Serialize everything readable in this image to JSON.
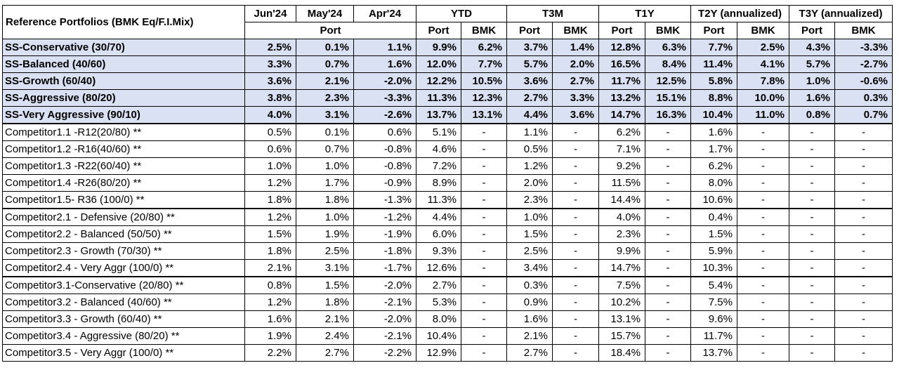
{
  "header": {
    "corner": "Reference Portfolios (BMK Eq/F.I.Mix)",
    "periods": [
      "Jun'24",
      "May'24",
      "Apr'24",
      "YTD",
      "T3M",
      "T1Y",
      "T2Y (annualized)",
      "T3Y (annualized)"
    ],
    "port_label": "Port",
    "bmk_label": "BMK"
  },
  "groups": [
    {
      "type": "ss",
      "rows": [
        {
          "name": "SS-Conservative (30/70)",
          "values": [
            "2.5%",
            "0.1%",
            "1.1%",
            "9.9%",
            "6.2%",
            "3.7%",
            "1.4%",
            "12.8%",
            "6.3%",
            "7.7%",
            "2.5%",
            "4.3%",
            "-3.3%"
          ]
        },
        {
          "name": "SS-Balanced (40/60)",
          "values": [
            "3.3%",
            "0.7%",
            "1.6%",
            "12.0%",
            "7.7%",
            "5.7%",
            "2.0%",
            "16.5%",
            "8.4%",
            "11.4%",
            "4.1%",
            "5.7%",
            "-2.7%"
          ]
        },
        {
          "name": "SS-Growth (60/40)",
          "values": [
            "3.6%",
            "2.1%",
            "-2.0%",
            "12.2%",
            "10.5%",
            "3.6%",
            "2.7%",
            "11.7%",
            "12.5%",
            "5.8%",
            "7.8%",
            "1.0%",
            "-0.6%"
          ]
        },
        {
          "name": "SS-Aggressive (80/20)",
          "values": [
            "3.8%",
            "2.3%",
            "-3.3%",
            "11.3%",
            "12.3%",
            "2.7%",
            "3.3%",
            "13.2%",
            "15.1%",
            "8.8%",
            "10.0%",
            "1.6%",
            "0.3%"
          ]
        },
        {
          "name": "SS-Very Aggressive (90/10)",
          "values": [
            "4.0%",
            "3.1%",
            "-2.6%",
            "13.7%",
            "13.1%",
            "4.4%",
            "3.6%",
            "14.7%",
            "16.3%",
            "10.4%",
            "11.0%",
            "0.8%",
            "0.7%"
          ]
        }
      ]
    },
    {
      "type": "comp",
      "rows": [
        {
          "name": "Competitor1.1 -R12(20/80) **",
          "values": [
            "0.5%",
            "0.1%",
            "0.6%",
            "5.1%",
            "-",
            "1.1%",
            "-",
            "6.2%",
            "-",
            "1.6%",
            "-",
            "-",
            "-"
          ]
        },
        {
          "name": "Competitor1.2 -R16(40/60) **",
          "values": [
            "0.6%",
            "0.7%",
            "-0.8%",
            "4.6%",
            "-",
            "0.5%",
            "-",
            "7.1%",
            "-",
            "1.7%",
            "-",
            "-",
            "-"
          ]
        },
        {
          "name": "Competitor1.3 -R22(60/40) **",
          "values": [
            "1.0%",
            "1.0%",
            "-0.8%",
            "7.2%",
            "-",
            "1.2%",
            "-",
            "9.2%",
            "-",
            "6.2%",
            "-",
            "-",
            "-"
          ]
        },
        {
          "name": "Competitor1.4 -R26(80/20) **",
          "values": [
            "1.2%",
            "1.7%",
            "-0.9%",
            "8.9%",
            "-",
            "2.0%",
            "-",
            "11.5%",
            "-",
            "8.0%",
            "-",
            "-",
            "-"
          ]
        },
        {
          "name": "Competitor1.5- R36 (100/0) **",
          "values": [
            "1.8%",
            "1.8%",
            "-1.3%",
            "11.3%",
            "-",
            "2.3%",
            "-",
            "14.4%",
            "-",
            "10.6%",
            "-",
            "-",
            "-"
          ]
        }
      ]
    },
    {
      "type": "comp",
      "rows": [
        {
          "name": "Competitor2.1  - Defensive  (20/80) **",
          "values": [
            "1.2%",
            "1.0%",
            "-1.2%",
            "4.4%",
            "-",
            "1.0%",
            "-",
            "4.0%",
            "-",
            "0.4%",
            "-",
            "-",
            "-"
          ]
        },
        {
          "name": "Competitor2.2  - Balanced (50/50) **",
          "values": [
            "1.5%",
            "1.9%",
            "-1.9%",
            "6.0%",
            "-",
            "1.5%",
            "-",
            "2.3%",
            "-",
            "1.5%",
            "-",
            "-",
            "-"
          ]
        },
        {
          "name": "Competitor2.3  - Growth  (70/30) **",
          "values": [
            "1.8%",
            "2.5%",
            "-1.8%",
            "9.3%",
            "-",
            "2.5%",
            "-",
            "9.9%",
            "-",
            "5.9%",
            "-",
            "-",
            "-"
          ]
        },
        {
          "name": "Competitor2.4  - Very Aggr  (100/0) **",
          "values": [
            "2.1%",
            "3.1%",
            "-1.7%",
            "12.6%",
            "-",
            "3.4%",
            "-",
            "14.7%",
            "-",
            "10.3%",
            "-",
            "-",
            "-"
          ]
        }
      ]
    },
    {
      "type": "comp",
      "rows": [
        {
          "name": "Competitor3.1-Conservative (20/80) **",
          "values": [
            "0.8%",
            "1.5%",
            "-2.0%",
            "2.7%",
            "-",
            "0.3%",
            "-",
            "7.5%",
            "-",
            "5.4%",
            "-",
            "-",
            "-"
          ]
        },
        {
          "name": "Competitor3.2 - Balanced  (40/60) **",
          "values": [
            "1.2%",
            "1.8%",
            "-2.1%",
            "5.3%",
            "-",
            "0.9%",
            "-",
            "10.2%",
            "-",
            "7.5%",
            "-",
            "-",
            "-"
          ]
        },
        {
          "name": "Competitor3.3 - Growth  (60/40) **",
          "values": [
            "1.6%",
            "2.1%",
            "-2.0%",
            "8.0%",
            "-",
            "1.6%",
            "-",
            "13.1%",
            "-",
            "9.6%",
            "-",
            "-",
            "-"
          ]
        },
        {
          "name": "Competitor3.4 - Aggressive  (80/20) **",
          "values": [
            "1.9%",
            "2.4%",
            "-2.1%",
            "10.4%",
            "-",
            "2.1%",
            "-",
            "15.7%",
            "-",
            "11.7%",
            "-",
            "-",
            "-"
          ]
        },
        {
          "name": "Competitor3.5  - Very Aggr (100/0) **",
          "values": [
            "2.2%",
            "2.7%",
            "-2.2%",
            "12.9%",
            "-",
            "2.7%",
            "-",
            "18.4%",
            "-",
            "13.7%",
            "-",
            "-",
            "-"
          ]
        }
      ]
    }
  ]
}
